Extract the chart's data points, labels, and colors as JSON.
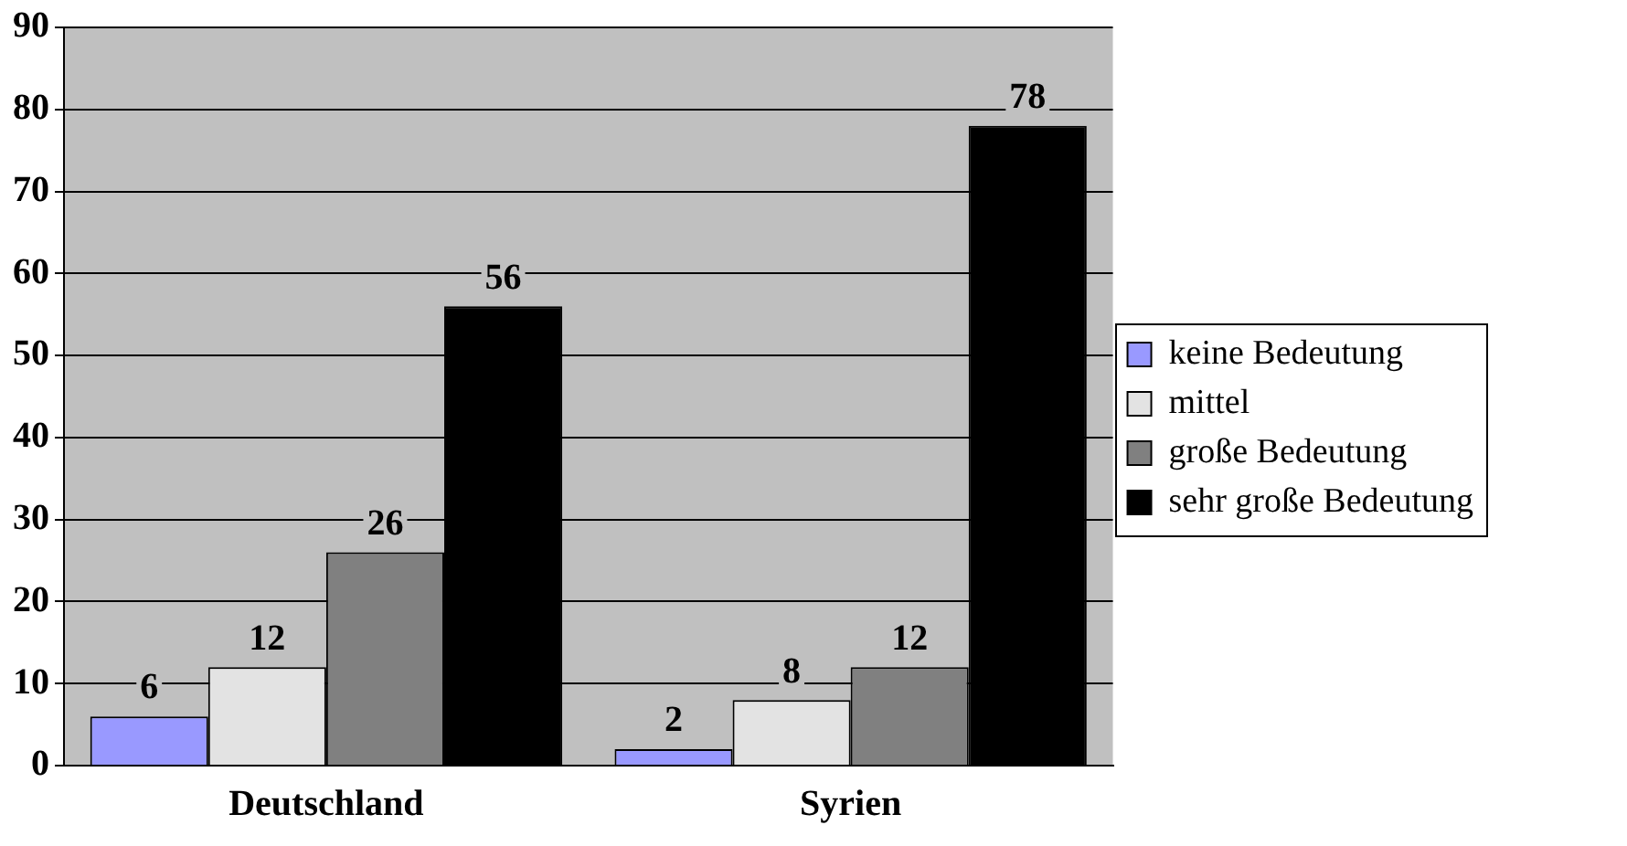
{
  "chart_data": {
    "type": "bar",
    "categories": [
      "Deutschland",
      "Syrien"
    ],
    "series": [
      {
        "name": "keine Bedeutung",
        "color": "#9999ff",
        "values": [
          6,
          2
        ]
      },
      {
        "name": "mittel",
        "color": "#e3e3e3",
        "values": [
          12,
          8
        ]
      },
      {
        "name": "große Bedeutung",
        "color": "#808080",
        "values": [
          26,
          12
        ]
      },
      {
        "name": "sehr große Bedeutung",
        "color": "#000000",
        "values": [
          56,
          78
        ]
      }
    ],
    "ylim": [
      0,
      90
    ],
    "yticks": [
      0,
      10,
      20,
      30,
      40,
      50,
      60,
      70,
      80,
      90
    ],
    "grid": "y",
    "legend": "right",
    "data_labels": true
  }
}
